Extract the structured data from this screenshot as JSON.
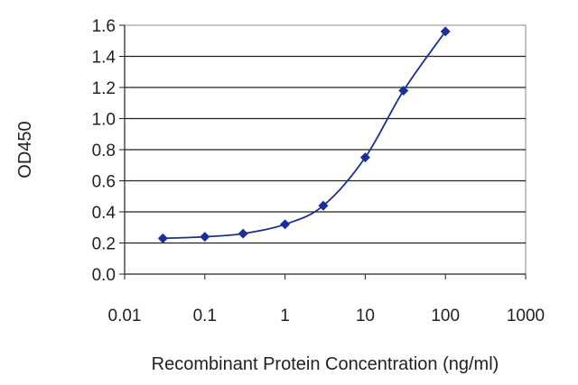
{
  "chart_data": {
    "type": "line",
    "xlabel": "Recombinant Protein Concentration (ng/ml)",
    "ylabel": "OD450",
    "x_scale": "log",
    "xlim": [
      0.01,
      1000
    ],
    "ylim": [
      0.0,
      1.6
    ],
    "x_ticks": [
      "0.01",
      "0.1",
      "1",
      "10",
      "100",
      "1000"
    ],
    "y_ticks": [
      "0.0",
      "0.2",
      "0.4",
      "0.6",
      "0.8",
      "1.0",
      "1.2",
      "1.4",
      "1.6"
    ],
    "grid": "horizontal",
    "series": [
      {
        "x": [
          0.03,
          0.1,
          0.3,
          1,
          3,
          10,
          30,
          100
        ],
        "y": [
          0.23,
          0.24,
          0.26,
          0.32,
          0.44,
          0.75,
          1.18,
          1.56
        ],
        "color": "#1a2f9a"
      }
    ]
  }
}
